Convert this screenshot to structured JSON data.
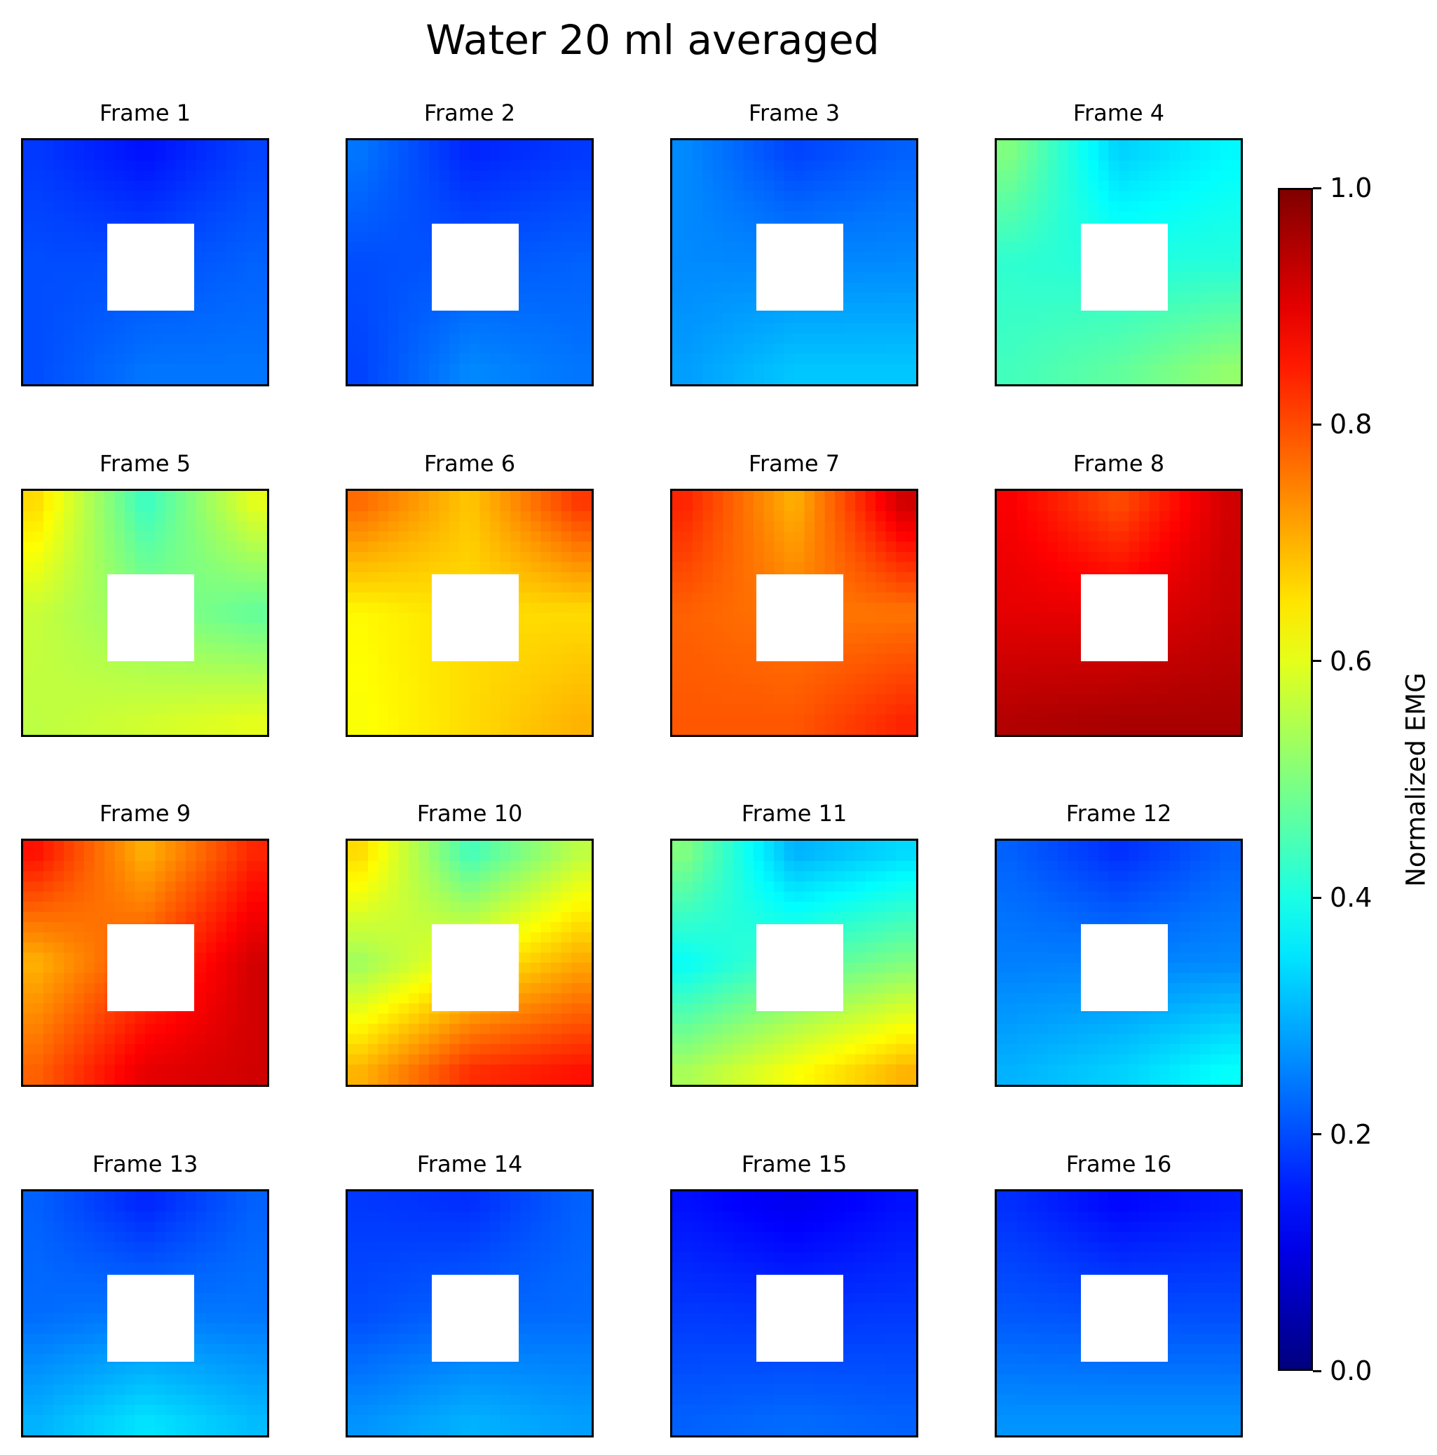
{
  "title": "Water 20 ml averaged",
  "colorbar": {
    "label": "Normalized EMG",
    "ticks": [
      "0.0",
      "0.2",
      "0.4",
      "0.6",
      "0.8",
      "1.0"
    ]
  },
  "chart_data": {
    "type": "heatmap",
    "title": "Water 20 ml averaged",
    "colormap": "jet",
    "vmin": 0.0,
    "vmax": 1.0,
    "colorbar_label": "Normalized EMG",
    "colorbar_ticks": [
      0.0,
      0.2,
      0.4,
      0.6,
      0.8,
      1.0
    ],
    "grid_layout": "4x4",
    "frames": [
      {
        "label": "Frame 1",
        "values": [
          [
            0.18,
            0.14,
            0.19
          ],
          [
            0.2,
            null,
            0.22
          ],
          [
            0.2,
            0.24,
            0.24
          ]
        ]
      },
      {
        "label": "Frame 2",
        "values": [
          [
            0.24,
            0.16,
            0.18
          ],
          [
            0.2,
            null,
            0.22
          ],
          [
            0.19,
            0.26,
            0.24
          ]
        ]
      },
      {
        "label": "Frame 3",
        "values": [
          [
            0.26,
            0.19,
            0.22
          ],
          [
            0.26,
            null,
            0.26
          ],
          [
            0.28,
            0.32,
            0.32
          ]
        ]
      },
      {
        "label": "Frame 4",
        "values": [
          [
            0.5,
            0.33,
            0.37
          ],
          [
            0.42,
            null,
            0.41
          ],
          [
            0.44,
            0.47,
            0.52
          ]
        ]
      },
      {
        "label": "Frame 5",
        "values": [
          [
            0.66,
            0.43,
            0.6
          ],
          [
            0.57,
            null,
            0.47
          ],
          [
            0.56,
            0.58,
            0.6
          ]
        ]
      },
      {
        "label": "Frame 6",
        "values": [
          [
            0.77,
            0.68,
            0.82
          ],
          [
            0.63,
            null,
            0.66
          ],
          [
            0.62,
            0.66,
            0.7
          ]
        ]
      },
      {
        "label": "Frame 7",
        "values": [
          [
            0.84,
            0.7,
            0.92
          ],
          [
            0.78,
            null,
            0.76
          ],
          [
            0.79,
            0.79,
            0.84
          ]
        ]
      },
      {
        "label": "Frame 8",
        "values": [
          [
            0.88,
            0.8,
            0.92
          ],
          [
            0.9,
            null,
            0.93
          ],
          [
            0.95,
            0.96,
            0.96
          ]
        ]
      },
      {
        "label": "Frame 9",
        "values": [
          [
            0.86,
            0.7,
            0.84
          ],
          [
            0.7,
            null,
            0.92
          ],
          [
            0.78,
            0.9,
            0.92
          ]
        ]
      },
      {
        "label": "Frame 10",
        "values": [
          [
            0.66,
            0.44,
            0.56
          ],
          [
            0.53,
            null,
            0.71
          ],
          [
            0.7,
            0.83,
            0.86
          ]
        ]
      },
      {
        "label": "Frame 11",
        "values": [
          [
            0.5,
            0.3,
            0.34
          ],
          [
            0.38,
            null,
            0.5
          ],
          [
            0.54,
            0.62,
            0.7
          ]
        ]
      },
      {
        "label": "Frame 12",
        "values": [
          [
            0.22,
            0.17,
            0.22
          ],
          [
            0.25,
            null,
            0.26
          ],
          [
            0.3,
            0.33,
            0.38
          ]
        ]
      },
      {
        "label": "Frame 13",
        "values": [
          [
            0.22,
            0.16,
            0.22
          ],
          [
            0.23,
            null,
            0.24
          ],
          [
            0.3,
            0.35,
            0.31
          ]
        ]
      },
      {
        "label": "Frame 14",
        "values": [
          [
            0.18,
            0.17,
            0.22
          ],
          [
            0.2,
            null,
            0.23
          ],
          [
            0.27,
            0.3,
            0.28
          ]
        ]
      },
      {
        "label": "Frame 15",
        "values": [
          [
            0.14,
            0.11,
            0.14
          ],
          [
            0.18,
            null,
            0.18
          ],
          [
            0.22,
            0.23,
            0.22
          ]
        ]
      },
      {
        "label": "Frame 16",
        "values": [
          [
            0.17,
            0.13,
            0.15
          ],
          [
            0.21,
            null,
            0.2
          ],
          [
            0.27,
            0.27,
            0.27
          ]
        ]
      }
    ]
  }
}
